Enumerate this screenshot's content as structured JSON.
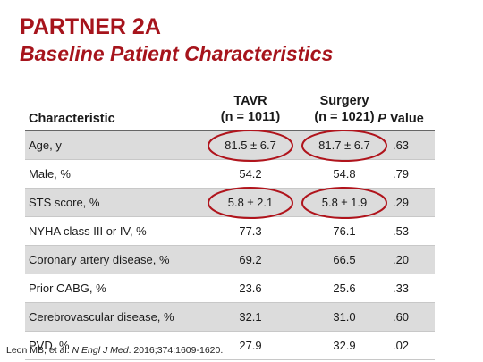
{
  "title": "PARTNER 2A",
  "subtitle": "Baseline Patient Characteristics",
  "table": {
    "headers": {
      "characteristic": "Characteristic",
      "tavr_line1": "TAVR",
      "tavr_line2": "(n = 1011)",
      "surgery_line1": "Surgery",
      "surgery_line2": "(n = 1021)",
      "p_italic": "P",
      "p_rest": " Value"
    },
    "rows": [
      {
        "name": "Age, y",
        "tavr": "81.5 ± 6.7",
        "surgery": "81.7 ± 6.7",
        "p": ".63",
        "highlighted": true
      },
      {
        "name": "Male, %",
        "tavr": "54.2",
        "surgery": "54.8",
        "p": ".79",
        "highlighted": false
      },
      {
        "name": "STS score, %",
        "tavr": "5.8 ± 2.1",
        "surgery": "5.8 ± 1.9",
        "p": ".29",
        "highlighted": true
      },
      {
        "name": "NYHA class III or IV, %",
        "tavr": "77.3",
        "surgery": "76.1",
        "p": ".53",
        "highlighted": false
      },
      {
        "name": "Coronary artery disease, %",
        "tavr": "69.2",
        "surgery": "66.5",
        "p": ".20",
        "highlighted": false
      },
      {
        "name": "Prior CABG, %",
        "tavr": "23.6",
        "surgery": "25.6",
        "p": ".33",
        "highlighted": false
      },
      {
        "name": "Cerebrovascular disease, %",
        "tavr": "32.1",
        "surgery": "31.0",
        "p": ".60",
        "highlighted": false
      },
      {
        "name": "PVD, %",
        "tavr": "27.9",
        "surgery": "32.9",
        "p": ".02",
        "highlighted": false
      }
    ]
  },
  "footer": {
    "prefix": "Leon MB, et al. ",
    "journal": "N Engl J Med",
    "suffix": ". 2016;374:1609-1620."
  },
  "colors": {
    "title": "#a6141c",
    "circle": "#b0141c",
    "shade": "#dcdcdc"
  }
}
